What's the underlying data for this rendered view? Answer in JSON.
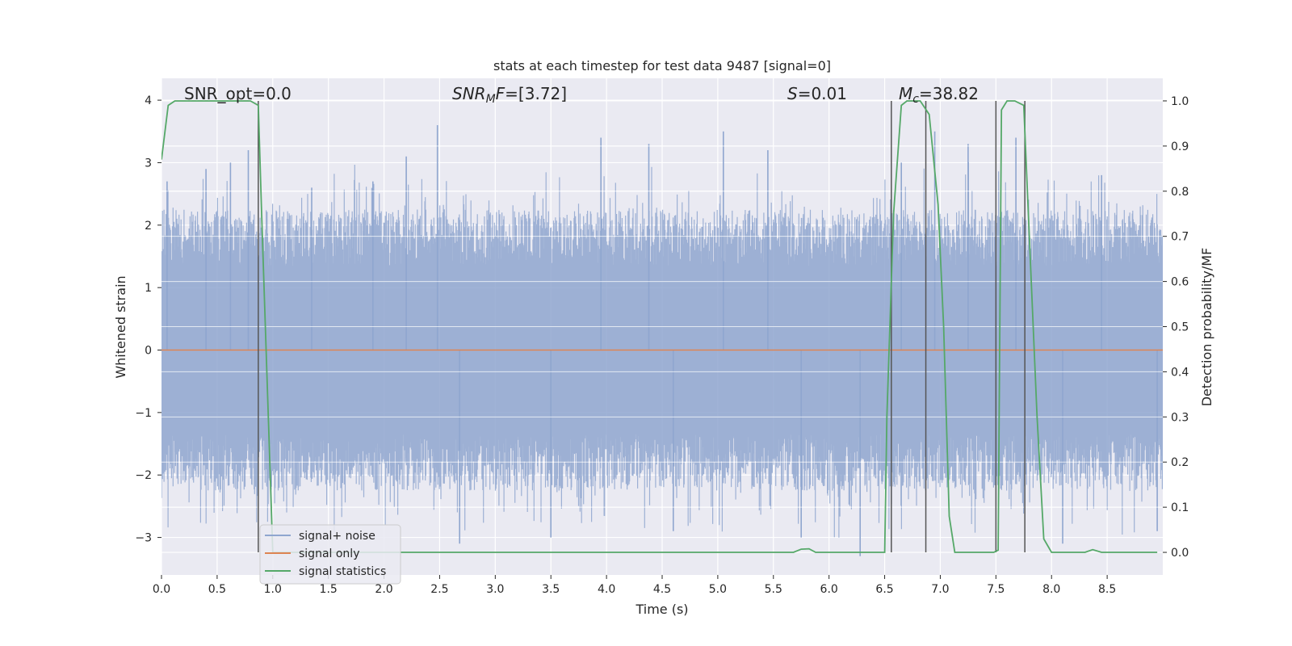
{
  "chart_data": {
    "type": "line",
    "title": "stats at each timestep for test data 9487 [signal=0]",
    "xlabel": "Time (s)",
    "ylabel_left": "Whitened strain",
    "ylabel_right": "Detection probability/MF",
    "xlim": [
      0.0,
      9.0
    ],
    "ylim_left": [
      -3.6,
      4.35
    ],
    "ylim_right": [
      -0.05,
      1.05
    ],
    "x_ticks": [
      "0.0",
      "0.5",
      "1.0",
      "1.5",
      "2.0",
      "2.5",
      "3.0",
      "3.5",
      "4.0",
      "4.5",
      "5.0",
      "5.5",
      "6.0",
      "6.5",
      "7.0",
      "7.5",
      "8.0",
      "8.5"
    ],
    "y_ticks_left": [
      "−3",
      "−2",
      "−1",
      "0",
      "1",
      "2",
      "3",
      "4"
    ],
    "y_ticks_right": [
      "0.0",
      "0.1",
      "0.2",
      "0.3",
      "0.4",
      "0.5",
      "0.6",
      "0.7",
      "0.8",
      "0.9",
      "1.0"
    ],
    "grid": true,
    "legend_position": "lower-left",
    "annotations": [
      {
        "label": "SNR_opt=0.0",
        "x": 0.2,
        "y": 4.1
      },
      {
        "label": "SNR_MF=[3.72]",
        "x": 2.6,
        "y": 4.1
      },
      {
        "label": "S=0.01",
        "x": 5.6,
        "y": 4.1
      },
      {
        "label": "M_c=38.82",
        "x": 6.6,
        "y": 4.1
      }
    ],
    "noise_envelope": {
      "typical_high": 1.8,
      "typical_low": -1.8,
      "peaks": [
        {
          "x": 0.05,
          "y": 2.7
        },
        {
          "x": 0.4,
          "y": 2.9
        },
        {
          "x": 0.62,
          "y": 3.0
        },
        {
          "x": 0.78,
          "y": 3.2
        },
        {
          "x": 1.35,
          "y": 2.6
        },
        {
          "x": 1.9,
          "y": 2.7
        },
        {
          "x": 2.2,
          "y": 3.1
        },
        {
          "x": 2.48,
          "y": 3.6
        },
        {
          "x": 2.68,
          "y": -3.1
        },
        {
          "x": 3.5,
          "y": -3.0
        },
        {
          "x": 3.95,
          "y": 3.4
        },
        {
          "x": 4.38,
          "y": 3.3
        },
        {
          "x": 4.6,
          "y": -2.9
        },
        {
          "x": 5.05,
          "y": 3.5
        },
        {
          "x": 5.45,
          "y": 3.2
        },
        {
          "x": 5.75,
          "y": -3.0
        },
        {
          "x": 6.28,
          "y": -3.3
        },
        {
          "x": 6.65,
          "y": 3.0
        },
        {
          "x": 6.95,
          "y": 3.5
        },
        {
          "x": 7.25,
          "y": 3.3
        },
        {
          "x": 7.68,
          "y": 3.4
        },
        {
          "x": 8.1,
          "y": -3.1
        },
        {
          "x": 8.45,
          "y": 2.8
        },
        {
          "x": 8.95,
          "y": -2.9
        }
      ]
    },
    "series": [
      {
        "name": "signal+ noise",
        "color": "#8fa6cf",
        "axis": "left",
        "x_range": [
          0.0,
          9.0
        ],
        "amplitude_std": 0.8
      },
      {
        "name": "signal only",
        "color": "#dd8452",
        "axis": "left",
        "x": [
          0.0,
          9.0
        ],
        "y": [
          0.0,
          0.0
        ]
      },
      {
        "name": "signal statistics",
        "color": "#55a868",
        "axis": "right",
        "x": [
          0.0,
          0.06,
          0.12,
          0.5,
          0.8,
          0.87,
          0.9,
          1.0,
          5.68,
          5.75,
          5.82,
          5.88,
          6.5,
          6.52,
          6.58,
          6.65,
          6.7,
          6.82,
          6.9,
          6.98,
          7.03,
          7.08,
          7.13,
          7.48,
          7.52,
          7.55,
          7.6,
          7.67,
          7.75,
          7.8,
          7.87,
          7.93,
          8.0,
          8.3,
          8.37,
          8.45,
          8.95
        ],
        "y": [
          0.87,
          0.99,
          1.0,
          1.0,
          1.0,
          0.99,
          0.75,
          0.0,
          0.0,
          0.007,
          0.008,
          0.0,
          0.0,
          0.3,
          0.75,
          0.99,
          1.0,
          1.0,
          0.97,
          0.77,
          0.5,
          0.08,
          0.0,
          0.0,
          0.005,
          0.98,
          1.0,
          1.0,
          0.99,
          0.7,
          0.3,
          0.03,
          0.0,
          0.0,
          0.006,
          0.0,
          0.0
        ]
      }
    ],
    "vertical_markers": {
      "color": "#555555",
      "x": [
        0.87,
        6.56,
        6.87,
        7.5,
        7.76
      ],
      "y_range": [
        0.0,
        1.0
      ]
    }
  }
}
